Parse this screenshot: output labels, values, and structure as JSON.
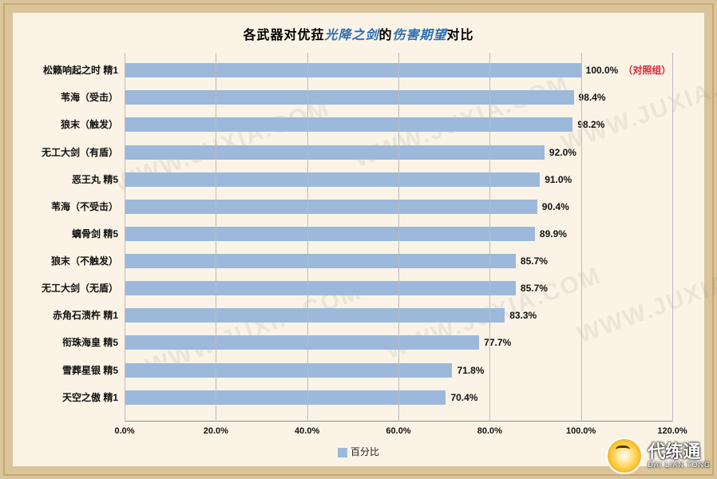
{
  "title_parts": {
    "a": "各武器对优菈",
    "hl": "光降之剑",
    "b": "的",
    "c": "伤害期望",
    "d": "对比"
  },
  "chart": {
    "type": "bar-horizontal",
    "xlim": [
      0,
      120
    ],
    "xtick_step": 20,
    "xticks": [
      "0.0%",
      "20.0%",
      "40.0%",
      "60.0%",
      "80.0%",
      "100.0%",
      "120.0%"
    ],
    "bar_color": "#9cb9db",
    "grid_color": "#bbb",
    "background": "#fbf4e6",
    "label_fontsize": 12,
    "title_fontsize": 16,
    "legend_label": "百分比",
    "control_label": "（对照组）",
    "items": [
      {
        "label": "松籁响起之时 精1",
        "value": 100.0,
        "txt": "100.0%",
        "control": true
      },
      {
        "label": "苇海（受击）",
        "value": 98.4,
        "txt": "98.4%"
      },
      {
        "label": "狼末（触发）",
        "value": 98.2,
        "txt": "98.2%"
      },
      {
        "label": "无工大剑（有盾）",
        "value": 92.0,
        "txt": "92.0%"
      },
      {
        "label": "恶王丸 精5",
        "value": 91.0,
        "txt": "91.0%"
      },
      {
        "label": "苇海（不受击）",
        "value": 90.4,
        "txt": "90.4%"
      },
      {
        "label": "螭骨剑 精5",
        "value": 89.9,
        "txt": "89.9%"
      },
      {
        "label": "狼末（不触发）",
        "value": 85.7,
        "txt": "85.7%"
      },
      {
        "label": "无工大剑（无盾）",
        "value": 85.7,
        "txt": "85.7%"
      },
      {
        "label": "赤角石溃杵 精1",
        "value": 83.3,
        "txt": "83.3%"
      },
      {
        "label": "衔珠海皇 精5",
        "value": 77.7,
        "txt": "77.7%"
      },
      {
        "label": "雪葬星银 精5",
        "value": 71.8,
        "txt": "71.8%"
      },
      {
        "label": "天空之傲 精1",
        "value": 70.4,
        "txt": "70.4%"
      }
    ]
  },
  "watermark": "WWW.JUXIA.COM",
  "brand": {
    "name": "代练通",
    "sub": "DAI LIAN TONG"
  }
}
